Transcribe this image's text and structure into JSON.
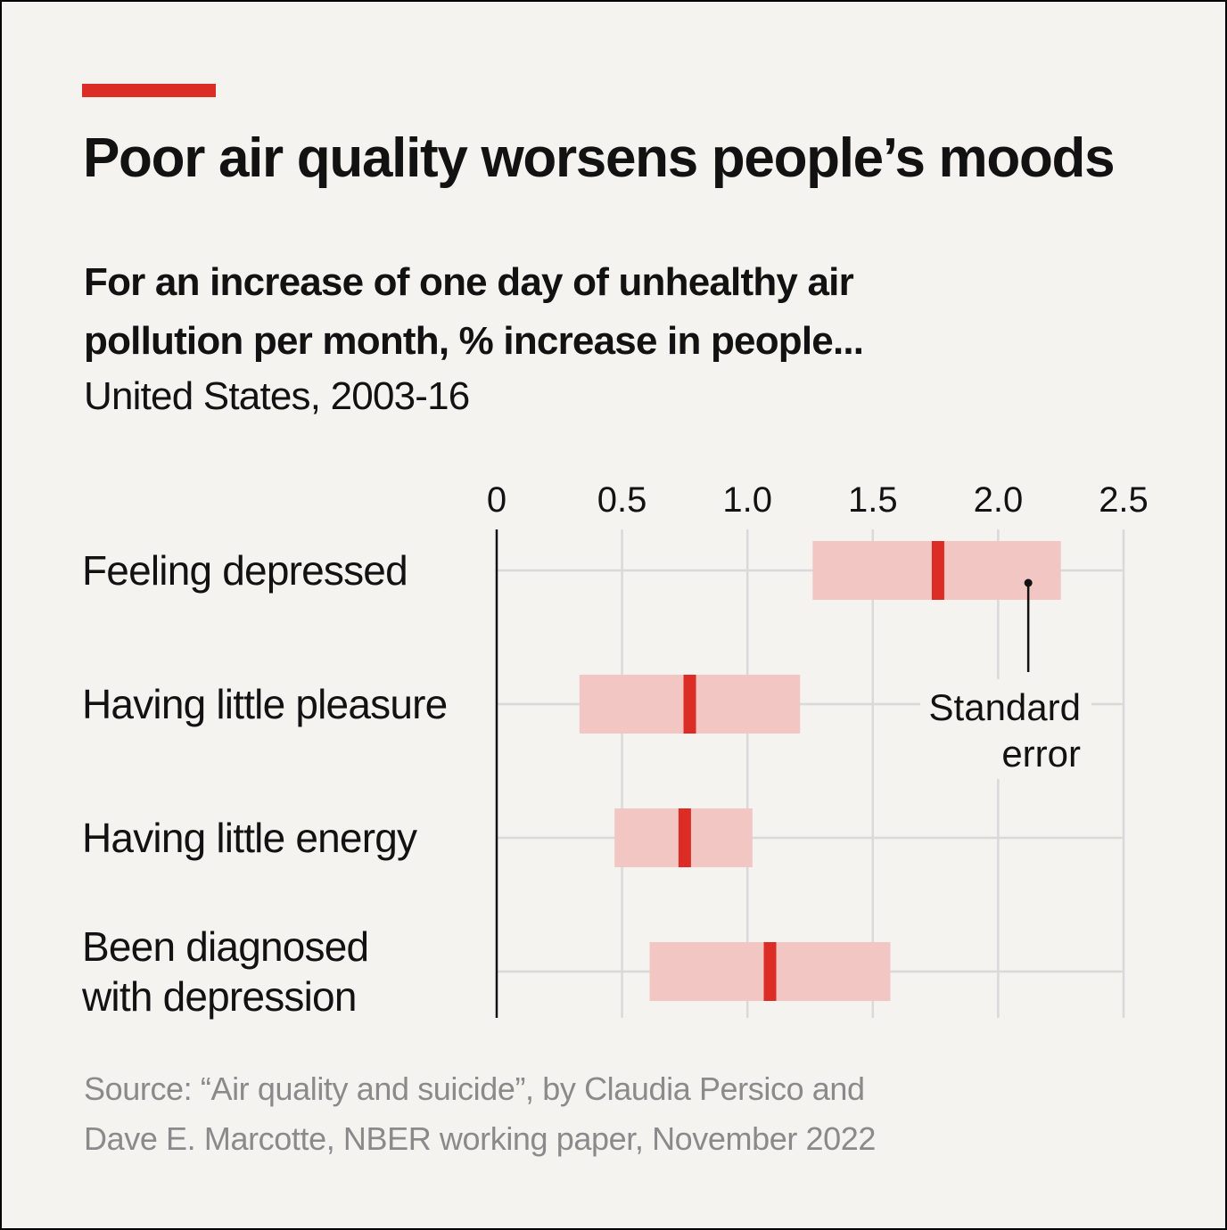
{
  "header": {
    "title": "Poor air quality worsens people’s moods",
    "subtitle": "For an increase of one day of unhealthy air pollution per month, % increase in people...",
    "subsubtitle": "United States, 2003-16"
  },
  "colors": {
    "accent": "#db2c25",
    "error_band": "#f2c6c3",
    "gridline": "#d9d9d9",
    "text": "#121212",
    "source_text": "#8a8a8a"
  },
  "chart_data": {
    "type": "range-dot",
    "xlim": [
      0,
      2.5
    ],
    "xticks": [
      0,
      0.5,
      1.0,
      1.5,
      2.0,
      2.5
    ],
    "xtick_labels": [
      "0",
      "0.5",
      "1.0",
      "1.5",
      "2.0",
      "2.5"
    ],
    "grid": true,
    "categories": [
      [
        "Feeling depressed"
      ],
      [
        "Having little pleasure"
      ],
      [
        "Having little energy"
      ],
      [
        "Been diagnosed",
        "with depression"
      ]
    ],
    "values": [
      1.76,
      0.77,
      0.75,
      1.09
    ],
    "ranges": [
      [
        1.26,
        2.25
      ],
      [
        0.33,
        1.21
      ],
      [
        0.47,
        1.02
      ],
      [
        0.61,
        1.57
      ]
    ],
    "annotation": {
      "lines": [
        "Standard",
        "error"
      ],
      "value": 2.12
    }
  },
  "source": {
    "lines": [
      "Source: “Air quality and suicide”, by Claudia Persico and",
      "Dave E. Marcotte, NBER working paper, November 2022"
    ]
  }
}
